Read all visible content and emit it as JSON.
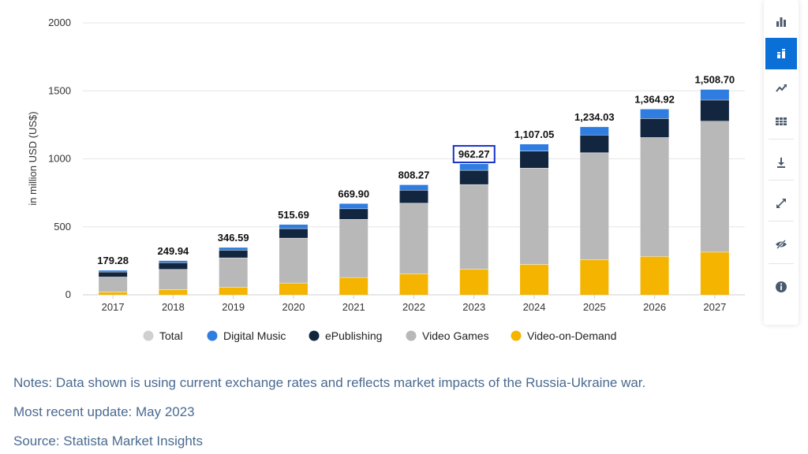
{
  "chart_data": {
    "type": "bar",
    "stacked": true,
    "categories": [
      "2017",
      "2018",
      "2019",
      "2020",
      "2021",
      "2022",
      "2023",
      "2024",
      "2025",
      "2026",
      "2027"
    ],
    "ylabel": "in million USD (US$)",
    "ylim": [
      0,
      2000
    ],
    "yticks": [
      0,
      500,
      1000,
      1500,
      2000
    ],
    "grid": true,
    "legend_position": "bottom",
    "totals": [
      "179.28",
      "249.94",
      "346.59",
      "515.69",
      "669.90",
      "808.27",
      "962.27",
      "1,107.05",
      "1,234.03",
      "1,364.92",
      "1,508.70"
    ],
    "highlighted_category": "2023",
    "series": [
      {
        "name": "Video-on-Demand",
        "color": "#f4b400",
        "values": [
          22,
          38,
          58,
          88,
          128,
          155,
          190,
          225,
          258,
          283,
          315
        ]
      },
      {
        "name": "Video Games",
        "color": "#b8b8b8",
        "values": [
          110,
          150,
          215,
          330,
          428,
          520,
          622,
          708,
          788,
          875,
          963
        ]
      },
      {
        "name": "ePublishing",
        "color": "#12263f",
        "values": [
          37,
          50,
          56,
          70,
          78,
          95,
          105,
          125,
          130,
          140,
          155
        ]
      },
      {
        "name": "Digital Music",
        "color": "#2f7de1",
        "values": [
          10,
          12,
          18,
          28,
          36,
          38,
          45,
          49,
          58,
          67,
          76
        ]
      }
    ],
    "legend": [
      {
        "name": "Total",
        "color": "#d0d0d0",
        "muted": true
      },
      {
        "name": "Digital Music",
        "color": "#2f7de1"
      },
      {
        "name": "ePublishing",
        "color": "#12263f"
      },
      {
        "name": "Video Games",
        "color": "#b8b8b8"
      },
      {
        "name": "Video-on-Demand",
        "color": "#f4b400"
      }
    ]
  },
  "notes": {
    "line1": "Notes: Data shown is using current exchange rates and reflects market impacts of the Russia-Ukraine war.",
    "line2": "Most recent update: May 2023",
    "line3": "Source: Statista Market Insights"
  },
  "toolbar": {
    "buttons": [
      {
        "icon": "bar-chart-icon",
        "active": false
      },
      {
        "icon": "stacked-bar-icon",
        "active": true
      },
      {
        "icon": "line-chart-icon",
        "active": false
      },
      {
        "icon": "table-icon",
        "active": false
      },
      {
        "icon": "download-icon",
        "active": false
      },
      {
        "icon": "fullscreen-icon",
        "active": false
      },
      {
        "icon": "hide-icon",
        "active": false
      },
      {
        "icon": "info-icon",
        "active": false
      }
    ],
    "accent_color": "#0b6fd8"
  }
}
